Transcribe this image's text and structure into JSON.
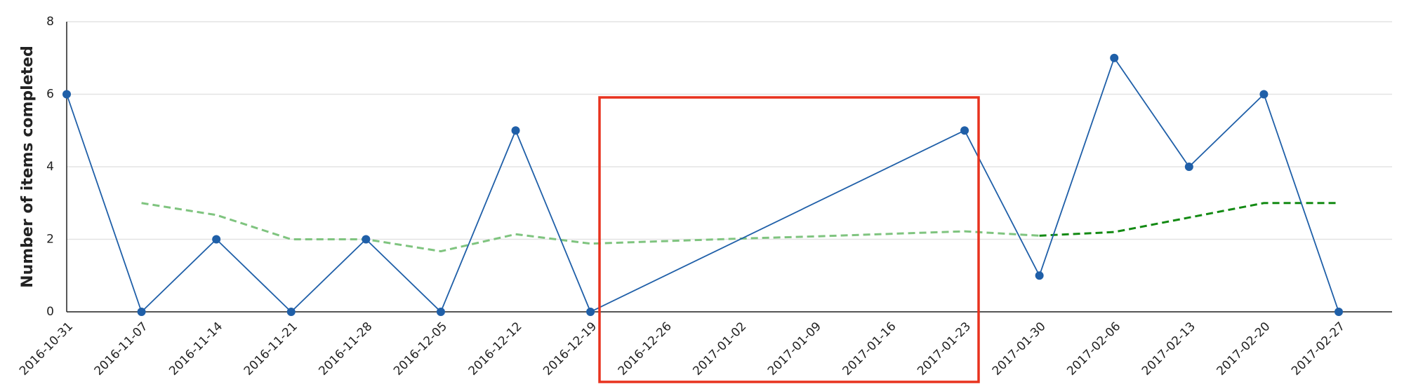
{
  "chart_data": {
    "type": "line",
    "y_label": "Number of items completed",
    "categories": [
      "2016-10-31",
      "2016-11-07",
      "2016-11-14",
      "2016-11-21",
      "2016-11-28",
      "2016-12-05",
      "2016-12-12",
      "2016-12-19",
      "2016-12-26",
      "2017-01-02",
      "2017-01-09",
      "2017-01-16",
      "2017-01-23",
      "2017-01-30",
      "2017-02-06",
      "2017-02-13",
      "2017-02-20",
      "2017-02-27"
    ],
    "series": [
      {
        "color": "#1f5fa8",
        "markers": true,
        "dashed": false,
        "x": [
          "2016-10-31",
          "2016-11-07",
          "2016-11-14",
          "2016-11-21",
          "2016-11-28",
          "2016-12-05",
          "2016-12-12",
          "2016-12-19",
          "2017-01-23",
          "2017-01-30",
          "2017-02-06",
          "2017-02-13",
          "2017-02-20",
          "2017-02-27"
        ],
        "values": [
          6,
          0,
          2,
          0,
          2,
          0,
          5,
          0,
          5,
          1,
          7,
          4,
          6,
          0
        ]
      },
      {
        "color": "#7fc47f",
        "markers": false,
        "dashed": true,
        "x": [
          "2016-11-07",
          "2016-11-14",
          "2016-11-21",
          "2016-11-28",
          "2016-12-05",
          "2016-12-12",
          "2016-12-19",
          "2016-12-26",
          "2017-01-02",
          "2017-01-09",
          "2017-01-16",
          "2017-01-23",
          "2017-01-30"
        ],
        "values": [
          3,
          2.67,
          2,
          2,
          1.67,
          2.14,
          1.88,
          1.95,
          2.02,
          2.08,
          2.15,
          2.22,
          2.1
        ]
      },
      {
        "color": "#138a13",
        "markers": false,
        "dashed": true,
        "x": [
          "2017-01-30",
          "2017-02-06",
          "2017-02-13",
          "2017-02-20",
          "2017-02-27"
        ],
        "values": [
          2.1,
          2.2,
          2.6,
          3,
          3
        ]
      }
    ],
    "ylim": [
      0,
      8
    ],
    "yticks": [
      0,
      2,
      4,
      6,
      8
    ],
    "grid": true
  }
}
